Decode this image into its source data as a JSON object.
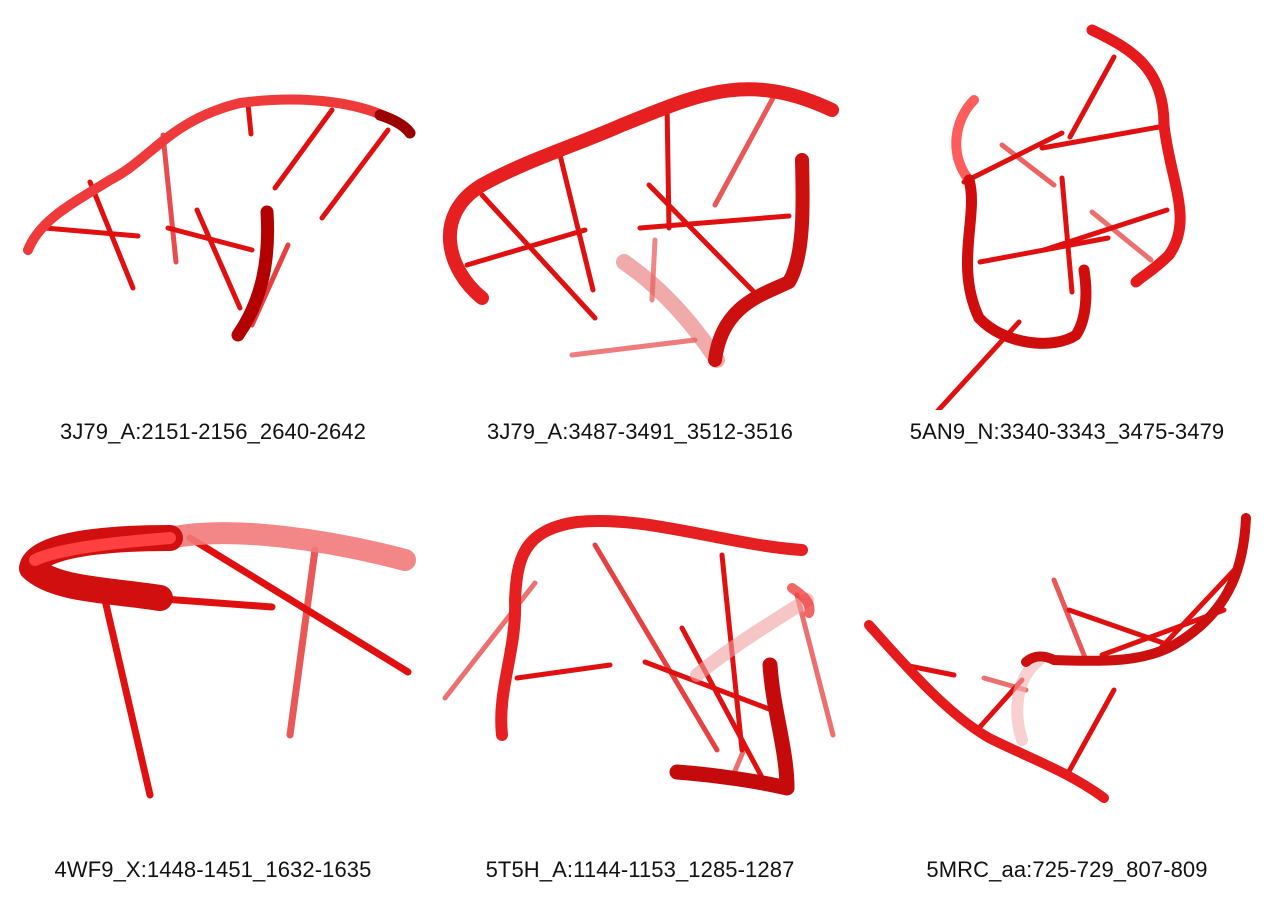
{
  "colors": {
    "backbone": "#e41a1c",
    "backbone_dark": "#8e0000",
    "rung": "#e01010"
  },
  "panels": [
    {
      "caption": "3J79_A:2151-2156_2640-2642"
    },
    {
      "caption": "3J79_A:3487-3491_3512-3516"
    },
    {
      "caption": "5AN9_N:3340-3343_3475-3479"
    },
    {
      "caption": "4WF9_X:1448-1451_1632-1635"
    },
    {
      "caption": "5T5H_A:1144-1153_1285-1287"
    },
    {
      "caption": "5MRC_aa:725-729_807-809"
    }
  ]
}
